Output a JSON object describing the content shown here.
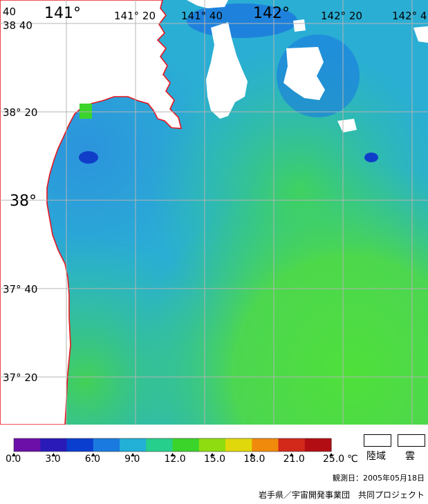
{
  "map": {
    "lon_labels": [
      {
        "text": "40",
        "size": "small"
      },
      {
        "text": "141°",
        "size": "big"
      },
      {
        "text": "141° 20",
        "size": "small"
      },
      {
        "text": "141° 40",
        "size": "small"
      },
      {
        "text": "142°",
        "size": "big"
      },
      {
        "text": "142° 20",
        "size": "small"
      },
      {
        "text": "142° 4",
        "size": "small"
      }
    ],
    "lat_labels": [
      {
        "text": "38  40",
        "size": "small"
      },
      {
        "text": "38° 20",
        "size": "small"
      },
      {
        "text": "38°",
        "size": "big"
      },
      {
        "text": "37° 40",
        "size": "small"
      },
      {
        "text": "37° 20",
        "size": "small"
      }
    ],
    "colors": {
      "land": "#ffffff",
      "coastline": "#e8141e",
      "grid": "#b4b4b4",
      "cloud": "#ffffff"
    }
  },
  "legend": {
    "colors": [
      "#6b0fa8",
      "#2a1ab8",
      "#0a3ecf",
      "#1a7ae0",
      "#22b0d6",
      "#27cf8c",
      "#3ad42a",
      "#8fdd10",
      "#e0d80a",
      "#f08a0c",
      "#d2281a",
      "#b30d14"
    ],
    "ticks": [
      "0.0",
      "3.0",
      "6.0",
      "9.0",
      "12.0",
      "15.0",
      "18.0",
      "21.0",
      "25.0"
    ],
    "unit": "℃",
    "land_label": "陸域",
    "cloud_label": "雲"
  },
  "footer": {
    "observation_date": "観測日：2005年05月18日",
    "credit": "岩手県／宇宙開発事業団　共同プロジェクト"
  }
}
